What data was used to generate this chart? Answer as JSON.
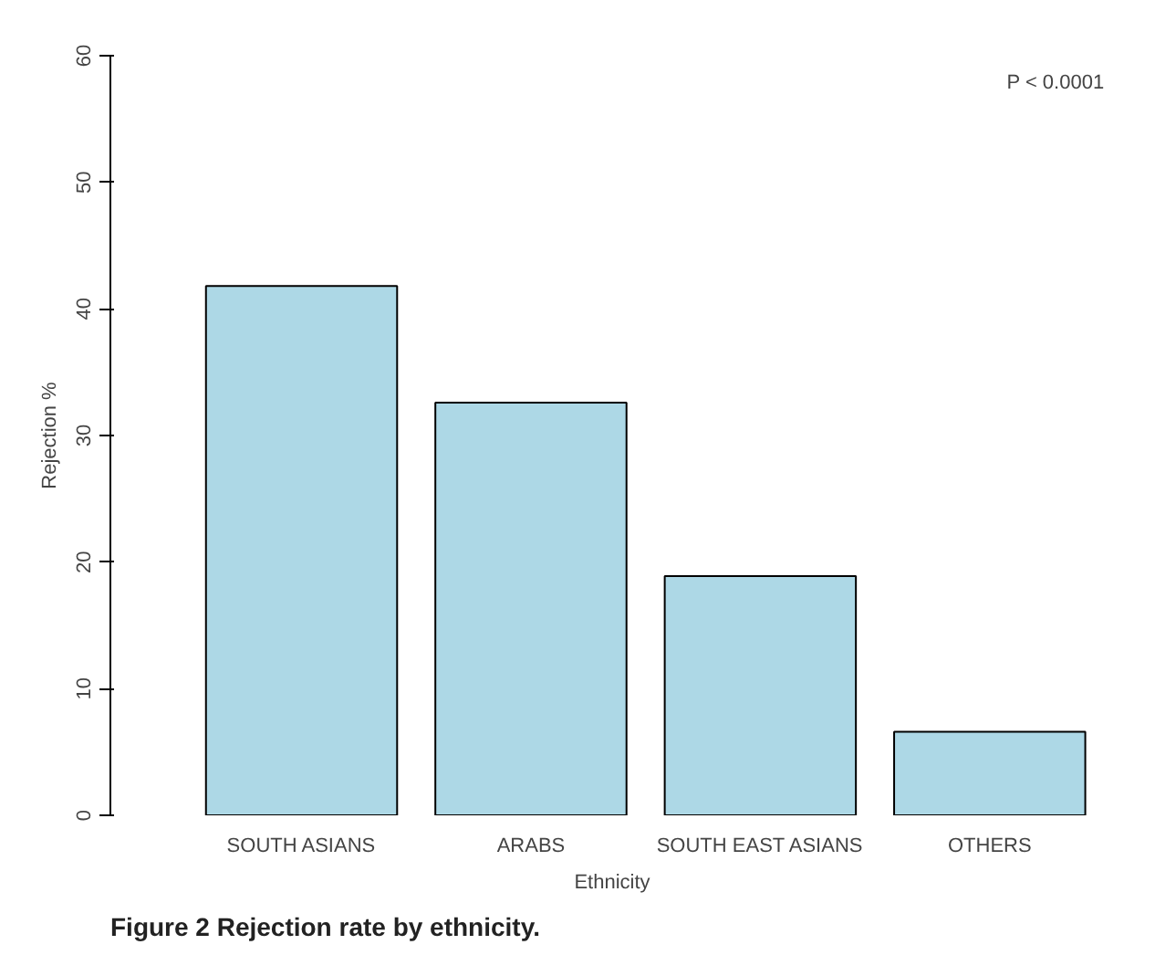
{
  "chart_data": {
    "type": "bar",
    "xlabel": "Ethnicity",
    "ylabel": "Rejection %",
    "categories": [
      "SOUTH ASIANS",
      "ARABS",
      "SOUTH EAST ASIANS",
      "OTHERS"
    ],
    "values": [
      41.8,
      32.6,
      18.9,
      6.6
    ],
    "color": "#add8e6",
    "ylim": [
      0,
      60
    ],
    "yticks": [
      0,
      10,
      20,
      30,
      40,
      50,
      60
    ],
    "grid": false,
    "annotations": [
      "P < 0.0001",
      "Figure 2 Rejection rate by ethnicity."
    ]
  }
}
